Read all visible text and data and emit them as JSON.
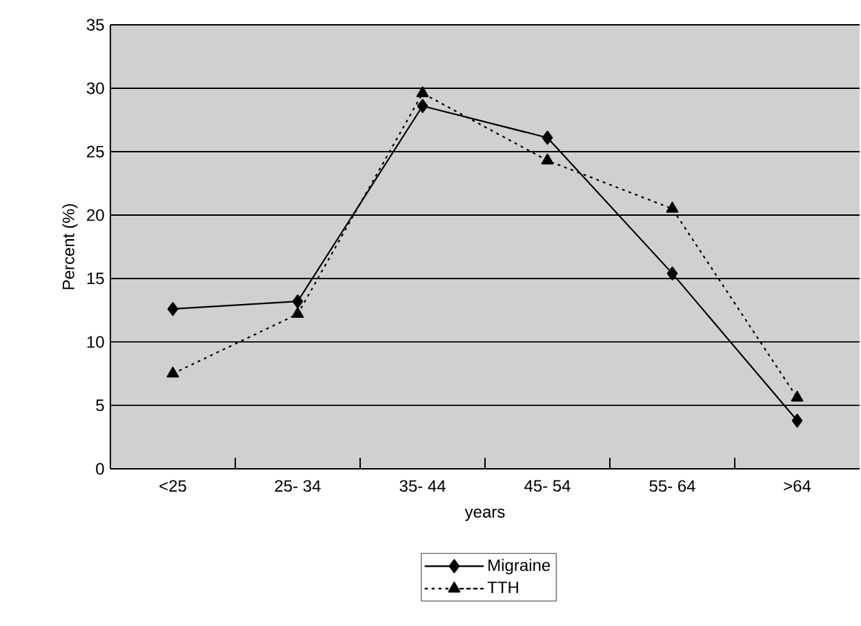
{
  "chart_data": {
    "type": "line",
    "xlabel": "years",
    "ylabel": "Percent (%)",
    "categories": [
      "<25",
      "25- 34",
      "35- 44",
      "45- 54",
      "55- 64",
      ">64"
    ],
    "series": [
      {
        "name": "Migraine",
        "color": "#000000",
        "marker": "diamond",
        "line_style": "solid",
        "values": [
          12.6,
          13.2,
          28.6,
          26.1,
          15.4,
          3.8
        ]
      },
      {
        "name": "TTH",
        "color": "#000000",
        "marker": "triangle",
        "line_style": "dotted",
        "values": [
          7.5,
          12.2,
          29.6,
          24.3,
          20.5,
          5.6
        ]
      }
    ],
    "ylim": [
      0,
      35
    ],
    "yticks": [
      0,
      5,
      10,
      15,
      20,
      25,
      30,
      35
    ],
    "grid": "y",
    "legend": "bottom"
  }
}
